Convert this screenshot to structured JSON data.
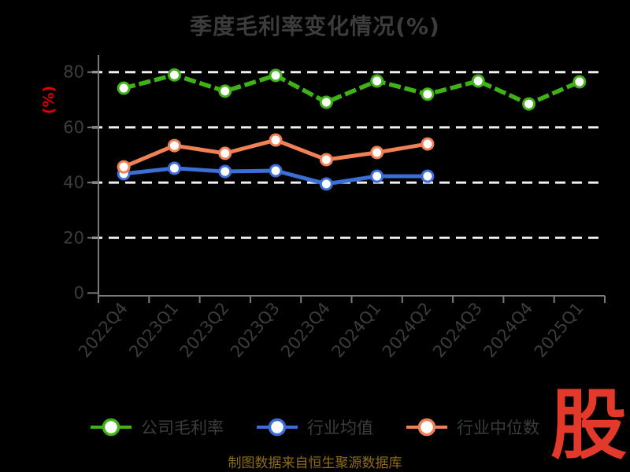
{
  "title": "季度毛利率变化情况(%)",
  "ylabel": "(%)",
  "caption": "制图数据来自恒生聚源数据库",
  "logo_text": "股",
  "colors": {
    "background": "#000000",
    "title_text": "#3c3c3c",
    "axis_line": "#7a7a7a",
    "tick_label": "#3c3c3c",
    "gridline": "#f0f0f0",
    "ylabel_red": "#dd0000",
    "caption_gold": "#8f6c16",
    "logo_red": "#e2392b",
    "legend_text": "#3c3c3c",
    "marker_fill": "#ffffff"
  },
  "chart_data": {
    "type": "line",
    "title": "季度毛利率变化情况(%)",
    "ylabel": "(%)",
    "categories": [
      "2022Q4",
      "2023Q1",
      "2023Q2",
      "2023Q3",
      "2023Q4",
      "2024Q1",
      "2024Q2",
      "2024Q3",
      "2024Q4",
      "2025Q1"
    ],
    "yticks": [
      0,
      20,
      40,
      60,
      80
    ],
    "ylim": [
      0,
      86
    ],
    "grid": "horizontal-dashed-white",
    "legend_position": "bottom",
    "series": [
      {
        "name": "公司毛利率",
        "color": "#3eb217",
        "style": "dashed",
        "marker": "white-circle",
        "values": [
          74.2,
          79.0,
          73.1,
          78.8,
          69.1,
          76.8,
          72.0,
          76.8,
          68.5,
          76.5
        ]
      },
      {
        "name": "行业均值",
        "color": "#3b6fd6",
        "style": "solid",
        "marker": "white-circle",
        "values": [
          43.2,
          45.2,
          44.0,
          44.3,
          39.5,
          42.3,
          42.3
        ]
      },
      {
        "name": "行业中位数",
        "color": "#f08156",
        "style": "solid",
        "marker": "white-circle",
        "values": [
          45.7,
          53.4,
          50.6,
          55.4,
          48.3,
          50.9,
          54.0
        ]
      }
    ]
  }
}
